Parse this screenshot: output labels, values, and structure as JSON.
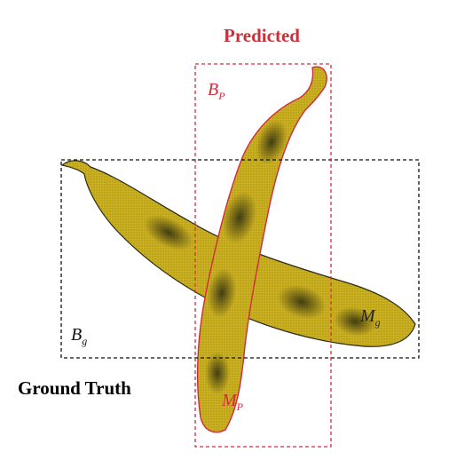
{
  "labels": {
    "predicted": "Predicted",
    "ground_truth": "Ground Truth",
    "bp_main": "B",
    "bp_sub": "P",
    "bg_main": "B",
    "bg_sub": "g",
    "mg_main": "M",
    "mg_sub": "g",
    "mp_main": "M",
    "mp_sub": "P"
  },
  "colors": {
    "predicted": "#d42c3c",
    "ground_truth": "#111111",
    "pod_fill": "#c9a81c",
    "pod_dark": "#3b3510"
  }
}
